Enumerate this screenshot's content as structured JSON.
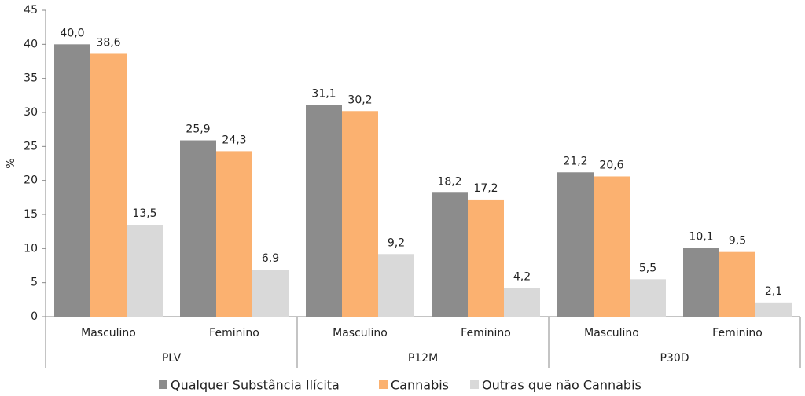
{
  "chart_data": {
    "type": "bar",
    "y_label": "%",
    "categories": [
      "Masculino",
      "Feminino",
      "Masculino",
      "Feminino",
      "Masculino",
      "Feminino"
    ],
    "groups": [
      "PLV",
      "P12M",
      "P30D"
    ],
    "series": [
      {
        "name": "Qualquer Substância Ilícita",
        "color": "#8c8c8c",
        "values": [
          40.0,
          25.9,
          31.1,
          18.2,
          21.2,
          10.1
        ],
        "value_labels": [
          "40,0",
          "25,9",
          "31,1",
          "18,2",
          "21,2",
          "10,1"
        ]
      },
      {
        "name": "Cannabis",
        "color": "#fbb170",
        "values": [
          38.6,
          24.3,
          30.2,
          17.2,
          20.6,
          9.5
        ],
        "value_labels": [
          "38,6",
          "24,3",
          "30,2",
          "17,2",
          "20,6",
          "9,5"
        ]
      },
      {
        "name": "Outras que não Cannabis",
        "color": "#d9d9d9",
        "values": [
          13.5,
          6.9,
          9.2,
          4.2,
          5.5,
          2.1
        ],
        "value_labels": [
          "13,5",
          "6,9",
          "9,2",
          "4,2",
          "5,5",
          "2,1"
        ]
      }
    ],
    "ylim": [
      0,
      45
    ],
    "yticks": [
      0,
      5,
      10,
      15,
      20,
      25,
      30,
      35,
      40,
      45
    ],
    "grid": false,
    "legend": "bottom"
  }
}
